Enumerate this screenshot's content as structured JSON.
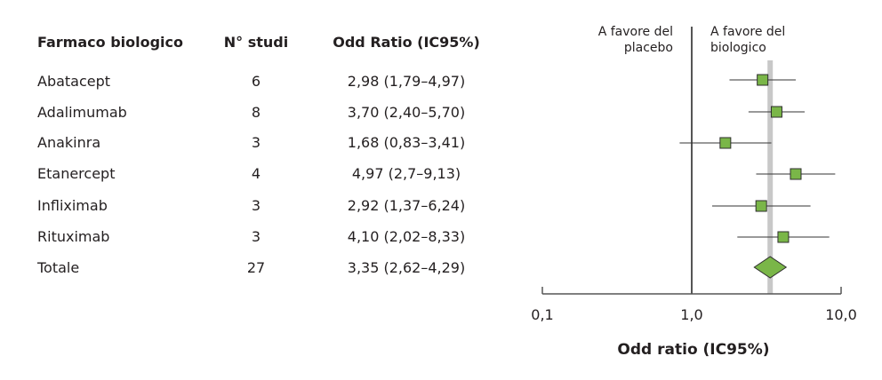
{
  "table": {
    "headers": [
      "Farmaco biologico",
      "N° studi",
      "Odd Ratio (IC95%)"
    ],
    "rows": [
      {
        "drug": "Abatacept",
        "studies": "6",
        "or_ci": "2,98 (1,79–4,97)"
      },
      {
        "drug": "Adalimumab",
        "studies": "8",
        "or_ci": "3,70 (2,40–5,70)"
      },
      {
        "drug": "Anakinra",
        "studies": "3",
        "or_ci": "1,68 (0,83–3,41)"
      },
      {
        "drug": "Etanercept",
        "studies": "4",
        "or_ci": "4,97 (2,7–9,13)"
      },
      {
        "drug": "Infliximab",
        "studies": "3",
        "or_ci": "2,92 (1,37–6,24)"
      },
      {
        "drug": "Rituximab",
        "studies": "3",
        "or_ci": "4,10 (2,02–8,33)"
      },
      {
        "drug": "Totale",
        "studies": "27",
        "or_ci": "3,35 (2,62–4,29)"
      }
    ]
  },
  "chart_data": {
    "type": "forest",
    "xscale": "log",
    "xlim": [
      0.1,
      10
    ],
    "xticks": [
      "0,1",
      "1,0",
      "10,0"
    ],
    "xtick_values": [
      0.1,
      1,
      10
    ],
    "xlabel": "Odd ratio (IC95%)",
    "left_label": "A favore del placebo",
    "right_label": "A favore del biologico",
    "reference_line": 1.0,
    "pooled_line": 3.35,
    "marker_color": "#7ab648",
    "pooled_band_color": "#c8c8c8",
    "studies": [
      {
        "name": "Abatacept",
        "or": 2.98,
        "lo": 1.79,
        "hi": 4.97
      },
      {
        "name": "Adalimumab",
        "or": 3.7,
        "lo": 2.4,
        "hi": 5.7
      },
      {
        "name": "Anakinra",
        "or": 1.68,
        "lo": 0.83,
        "hi": 3.41
      },
      {
        "name": "Etanercept",
        "or": 4.97,
        "lo": 2.7,
        "hi": 9.13
      },
      {
        "name": "Infliximab",
        "or": 2.92,
        "lo": 1.37,
        "hi": 6.24
      },
      {
        "name": "Rituximab",
        "or": 4.1,
        "lo": 2.02,
        "hi": 8.33
      }
    ],
    "total": {
      "name": "Totale",
      "or": 3.35,
      "lo": 2.62,
      "hi": 4.29
    }
  }
}
